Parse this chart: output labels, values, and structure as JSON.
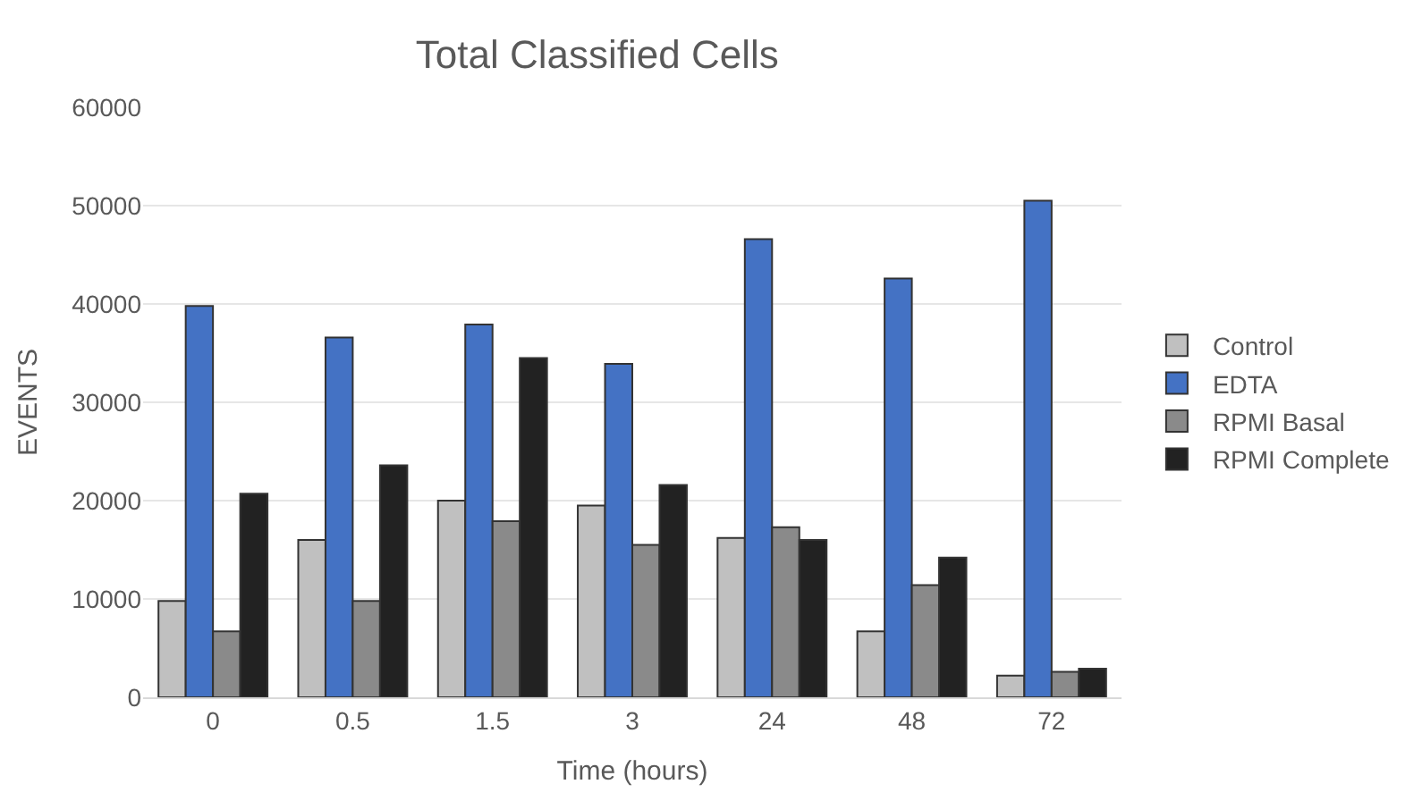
{
  "chart_data": {
    "type": "bar",
    "title": "Total Classified Cells",
    "xlabel": "Time (hours)",
    "ylabel": "EVENTS",
    "categories": [
      "0",
      "0.5",
      "1.5",
      "3",
      "24",
      "48",
      "72"
    ],
    "series": [
      {
        "name": "Control",
        "color": "#c0c0c0",
        "values": [
          9800,
          16000,
          20000,
          19500,
          16200,
          6700,
          2200
        ]
      },
      {
        "name": "EDTA",
        "color": "#4472c4",
        "values": [
          39800,
          36600,
          37900,
          33900,
          46600,
          42600,
          50500
        ]
      },
      {
        "name": "RPMI Basal",
        "color": "#8a8a8a",
        "values": [
          6700,
          9800,
          17900,
          15500,
          17300,
          11400,
          2600
        ]
      },
      {
        "name": "RPMI Complete",
        "color": "#222222",
        "values": [
          20700,
          23600,
          34500,
          21600,
          16000,
          14200,
          2900
        ]
      }
    ],
    "ylim": [
      0,
      60000
    ],
    "yticks": [
      0,
      10000,
      20000,
      30000,
      40000,
      50000,
      60000
    ],
    "grid": "y",
    "legend": "right"
  }
}
